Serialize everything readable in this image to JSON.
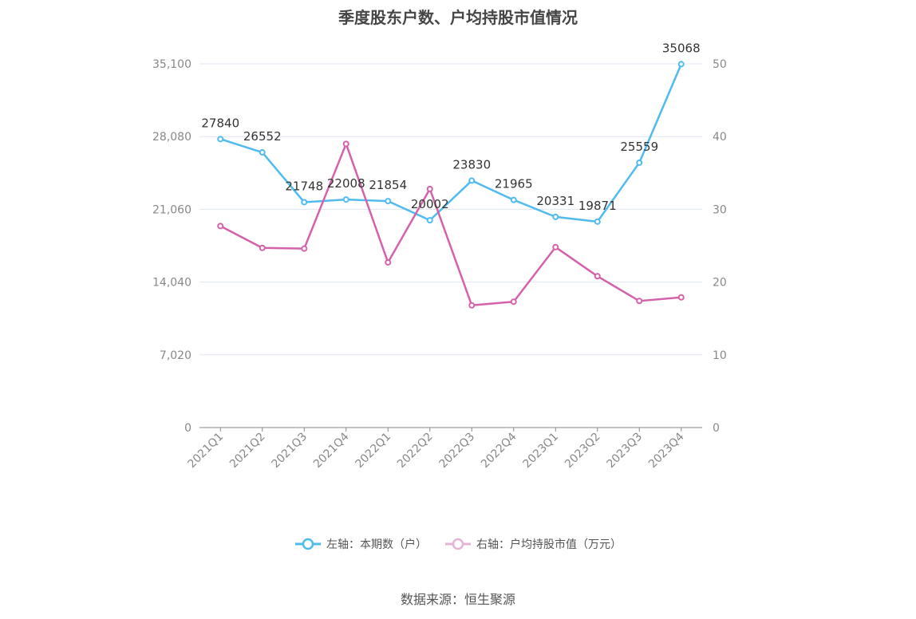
{
  "chart_data": {
    "type": "line",
    "title": "季度股东户数、户均持股市值情况",
    "categories": [
      "2021Q1",
      "2021Q2",
      "2021Q3",
      "2021Q4",
      "2022Q1",
      "2022Q2",
      "2022Q3",
      "2022Q4",
      "2023Q1",
      "2023Q2",
      "2023Q3",
      "2023Q4"
    ],
    "left_axis": {
      "ylim": [
        0,
        35100
      ],
      "ticks": [
        0,
        7020,
        14040,
        21060,
        28080,
        35100
      ],
      "tick_labels": [
        "0",
        "7,020",
        "14,040",
        "21,060",
        "28,080",
        "35,100"
      ]
    },
    "right_axis": {
      "ylim": [
        0,
        50
      ],
      "ticks": [
        0,
        10,
        20,
        30,
        40,
        50
      ],
      "tick_labels": [
        "0",
        "10",
        "20",
        "30",
        "40",
        "50"
      ]
    },
    "series": [
      {
        "name": "左轴：本期数（户）",
        "axis": "left",
        "color": "#4fbbee",
        "values": [
          27840,
          26552,
          21748,
          22008,
          21854,
          20002,
          23830,
          21965,
          20331,
          19871,
          25559,
          35068
        ],
        "data_labels": [
          "27840",
          "26552",
          "21748",
          "22008",
          "21854",
          "20002",
          "23830",
          "21965",
          "20331",
          "19871",
          "25559",
          "35068"
        ]
      },
      {
        "name": "右轴：户均持股市值（万元）",
        "axis": "right",
        "color": "#d462aa",
        "values": [
          27.7,
          24.7,
          24.6,
          39.0,
          22.7,
          32.8,
          16.8,
          17.3,
          24.8,
          20.8,
          17.4,
          17.9
        ]
      }
    ],
    "grid": true,
    "legend_position": "bottom"
  },
  "source_text": "数据来源：恒生聚源"
}
